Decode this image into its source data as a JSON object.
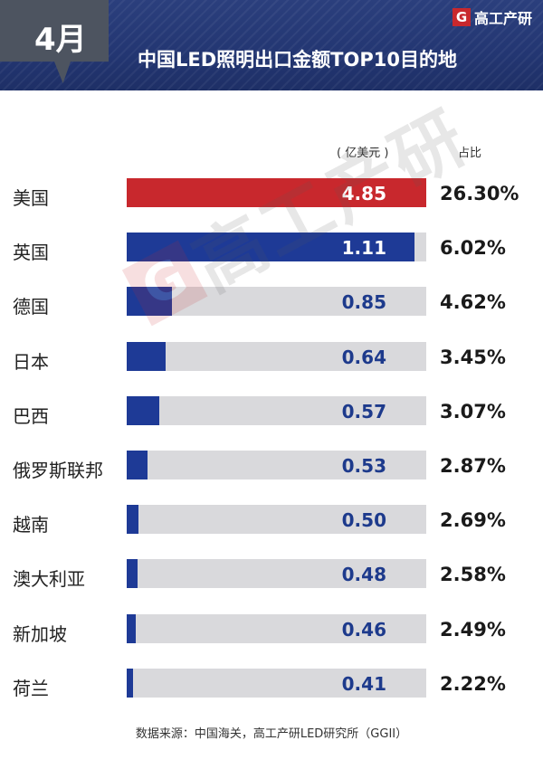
{
  "header": {
    "month": "4月",
    "title": "中国LED照明出口金额TOP10目的地",
    "brand": "高工产研",
    "brand_mark": "G"
  },
  "columns": {
    "unit": "( 亿美元 )",
    "share": "占比"
  },
  "watermark": {
    "mark": "G",
    "text": "高工产研"
  },
  "source": "数据来源：中国海关，高工产研LED研究所（GGII）",
  "colors": {
    "highlight": "#c8282d",
    "series": "#1e3a96",
    "track": "#d9d9dc"
  },
  "chart_data": {
    "type": "bar",
    "orientation": "horizontal",
    "title": "中国LED照明出口金额TOP10目的地",
    "unit": "( 亿美元 )",
    "categories": [
      "美国",
      "英国",
      "德国",
      "日本",
      "巴西",
      "俄罗斯联邦",
      "越南",
      "澳大利亚",
      "新加坡",
      "荷兰"
    ],
    "values": [
      4.85,
      1.11,
      0.85,
      0.64,
      0.57,
      0.53,
      0.5,
      0.48,
      0.46,
      0.41
    ],
    "value_labels": [
      "4.85",
      "1.11",
      "0.85",
      "0.64",
      "0.57",
      "0.53",
      "0.50",
      "0.48",
      "0.46",
      "0.41"
    ],
    "share_labels": [
      "26.30%",
      "6.02%",
      "4.62%",
      "3.45%",
      "3.07%",
      "2.87%",
      "2.69%",
      "2.58%",
      "2.49%",
      "2.22%"
    ],
    "bar_fill_fraction": [
      1.0,
      0.96,
      0.15,
      0.13,
      0.11,
      0.07,
      0.04,
      0.035,
      0.03,
      0.02
    ],
    "highlight_index": 0
  }
}
